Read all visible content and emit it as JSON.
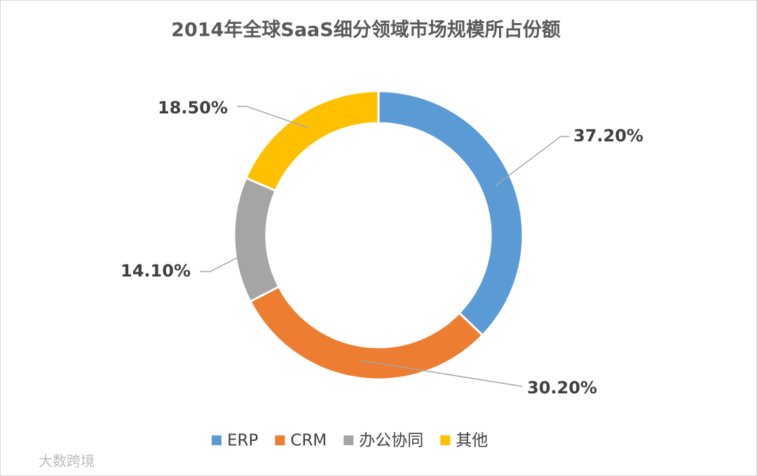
{
  "chart_data": {
    "type": "donut",
    "title": "2014年全球SaaS细分领域市场规模所占份额",
    "categories": [
      "ERP",
      "CRM",
      "办公协同",
      "其他"
    ],
    "values": [
      37.2,
      30.2,
      14.1,
      18.5
    ],
    "value_labels": [
      "37.20%",
      "30.20%",
      "14.10%",
      "18.50%"
    ],
    "colors": [
      "#5b9bd5",
      "#ed7d31",
      "#a5a5a5",
      "#ffc000"
    ],
    "legend": "bottom"
  },
  "watermark": "大数跨境"
}
